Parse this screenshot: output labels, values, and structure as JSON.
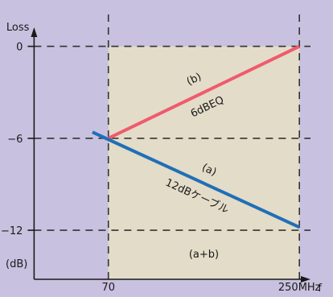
{
  "chart_data": {
    "type": "line",
    "ylabel": "Loss",
    "xlabel": "f",
    "y_unit": "(dB)",
    "x_ticks": [
      {
        "value": 70,
        "label": "70"
      },
      {
        "value": 250,
        "label": "250MHz"
      }
    ],
    "y_ticks": [
      {
        "value": 0,
        "label": "0"
      },
      {
        "value": -6,
        "label": "−6"
      },
      {
        "value": -12,
        "label": "−12"
      }
    ],
    "xlim": [
      -20,
      265
    ],
    "ylim": [
      -15.2,
      2.5
    ],
    "shaded_region": {
      "x": [
        70,
        250
      ],
      "y": [
        -15.2,
        0
      ],
      "color": "#e3dcc8"
    },
    "gridlines": "dashed at tick values",
    "series": [
      {
        "id": "b",
        "x": [
          70,
          250
        ],
        "y": [
          -6,
          0
        ],
        "color": "#f05a6e",
        "label_letter": "(b)",
        "label_name": "6dBEQ"
      },
      {
        "id": "a",
        "x": [
          55,
          250
        ],
        "y": [
          -5.6,
          -11.8
        ],
        "color": "#1f6fb8",
        "label_letter": "(a)",
        "label_name": "12dBケーブル"
      }
    ],
    "sum_label": "(a+b)"
  },
  "colors": {
    "background": "#c8c1df",
    "axis": "#1a1a1a",
    "grid": "#333333"
  }
}
